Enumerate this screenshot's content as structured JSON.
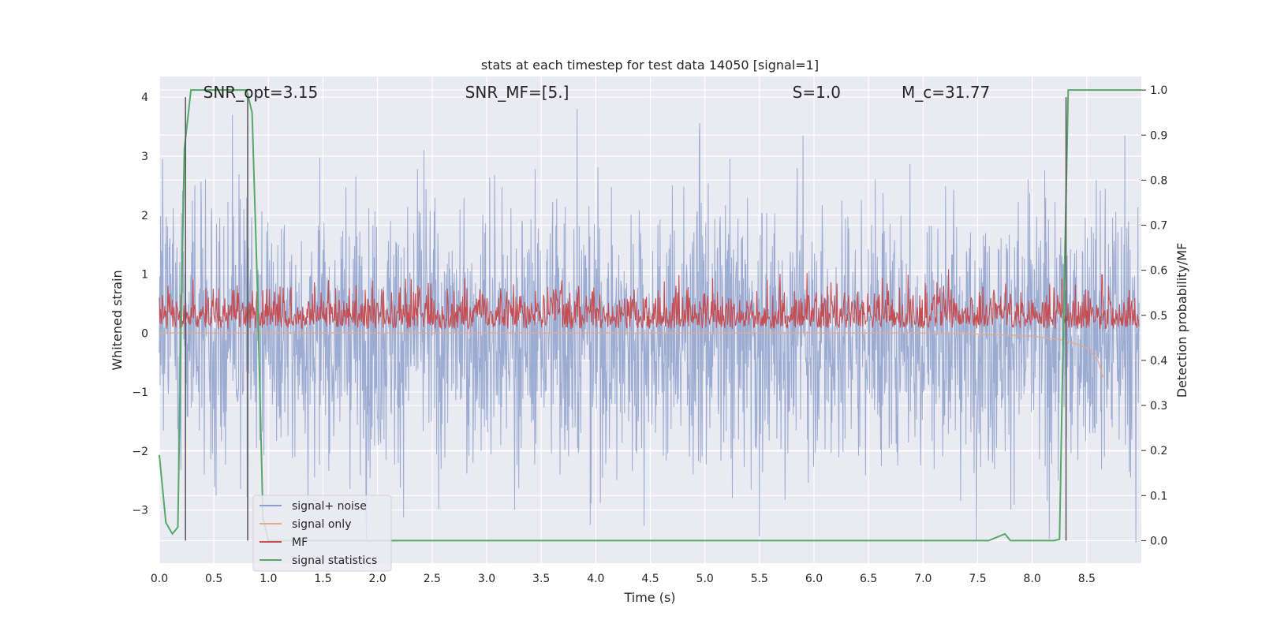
{
  "chart_data": {
    "type": "line",
    "title": "stats at each timestep for test data 14050 [signal=1]",
    "xlabel": "Time (s)",
    "ylabel_left": "Whitened strain",
    "ylabel_right": "Detection probability/MF",
    "xlim": [
      0,
      9.0
    ],
    "ylim_left": [
      -3.9,
      4.35
    ],
    "ylim_right": [
      -0.05,
      1.03
    ],
    "x_ticks": [
      0.0,
      0.5,
      1.0,
      1.5,
      2.0,
      2.5,
      3.0,
      3.5,
      4.0,
      4.5,
      5.0,
      5.5,
      6.0,
      6.5,
      7.0,
      7.5,
      8.0,
      8.5
    ],
    "x_tick_labels": [
      "0.0",
      "0.5",
      "1.0",
      "1.5",
      "2.0",
      "2.5",
      "3.0",
      "3.5",
      "4.0",
      "4.5",
      "5.0",
      "5.5",
      "6.0",
      "6.5",
      "7.0",
      "7.5",
      "8.0",
      "8.5"
    ],
    "y_left_ticks": [
      4,
      3,
      2,
      1,
      0,
      -1,
      -2,
      -3
    ],
    "y_left_tick_labels": [
      "4",
      "3",
      "2",
      "1",
      "0",
      "−1",
      "−2",
      "−3"
    ],
    "y_right_ticks": [
      1.0,
      0.9,
      0.8,
      0.7,
      0.6,
      0.5,
      0.4,
      0.3,
      0.2,
      0.1,
      0.0
    ],
    "y_right_tick_labels": [
      "1.0",
      "0.9",
      "0.8",
      "0.7",
      "0.6",
      "0.5",
      "0.4",
      "0.3",
      "0.2",
      "0.1",
      "0.0"
    ],
    "grid": true,
    "annotations": [
      {
        "text": "SNR_opt=3.15",
        "x": 0.2
      },
      {
        "text": "SNR_MF=[5.]",
        "x": 2.6
      },
      {
        "text": "S=1.0",
        "x": 5.6
      },
      {
        "text": "M_c=31.77",
        "x": 6.6
      }
    ],
    "vertical_lines": [
      0.24,
      0.81,
      8.31
    ],
    "legend_position": "lower-left",
    "series": [
      {
        "name": "signal+ noise",
        "axis": "left",
        "color": "#8da0cb",
        "style": "noise-band",
        "duration": 8.98,
        "typical_amplitude": 2.0,
        "peak_values": [
          {
            "x": 0.03,
            "y": 2.95
          },
          {
            "x": 0.67,
            "y": 3.7
          },
          {
            "x": 3.83,
            "y": 3.8
          },
          {
            "x": 4.95,
            "y": 3.3
          },
          {
            "x": 5.9,
            "y": 3.35
          },
          {
            "x": 8.85,
            "y": 3.35
          },
          {
            "x": 3.95,
            "y": -3.25
          },
          {
            "x": 5.5,
            "y": -3.45
          },
          {
            "x": 8.95,
            "y": -3.55
          }
        ]
      },
      {
        "name": "signal only",
        "axis": "left",
        "color": "#e6a98f",
        "x": [
          0.0,
          7.0,
          7.6,
          8.0,
          8.3,
          8.5,
          8.6,
          8.65
        ],
        "y": [
          0.0,
          0.0,
          -0.02,
          -0.05,
          -0.12,
          -0.25,
          -0.45,
          -0.75
        ]
      },
      {
        "name": "MF",
        "axis": "right",
        "color": "#c44e52",
        "style": "noise-band",
        "baseline": 0.5,
        "low": 0.47,
        "typical_high": 0.54,
        "max_value": 0.59,
        "max_x": 8.64
      },
      {
        "name": "signal statistics",
        "axis": "right",
        "color": "#55a868",
        "x": [
          0.0,
          0.06,
          0.12,
          0.17,
          0.2,
          0.23,
          0.29,
          0.5,
          0.8,
          0.85,
          0.9,
          0.95,
          1.0,
          7.6,
          7.75,
          7.8,
          8.2,
          8.25,
          8.28,
          8.33,
          9.0
        ],
        "y": [
          0.19,
          0.04,
          0.015,
          0.03,
          0.5,
          0.87,
          1.0,
          1.0,
          1.0,
          0.95,
          0.55,
          0.05,
          0.0,
          0.0,
          0.015,
          0.0,
          0.0,
          0.003,
          0.4,
          1.0,
          1.0
        ]
      }
    ]
  }
}
